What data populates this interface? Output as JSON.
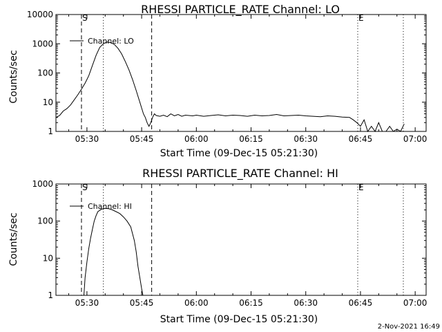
{
  "footer": {
    "date_stamp": "2-Nov-2021 16:49"
  },
  "chart_data": [
    {
      "type": "line",
      "title": "RHESSI PARTICLE_RATE Channel: LO",
      "xlabel": "Start Time (09-Dec-15 05:21:30)",
      "ylabel": "Counts/sec",
      "yscale": "log",
      "ylim": [
        1,
        10000
      ],
      "xlim": [
        "05:21:30",
        "07:03:00"
      ],
      "x_ticks": [
        "05:30",
        "05:45",
        "06:00",
        "06:15",
        "06:30",
        "06:45",
        "07:00"
      ],
      "y_ticks": [
        "1",
        "10",
        "100",
        "1000",
        "10000"
      ],
      "legend": {
        "position": "top-left",
        "label": "Channel: LO"
      },
      "markers": [
        {
          "label": "S",
          "time": "05:28:30",
          "style": "dashed"
        },
        {
          "label": "",
          "time": "05:34:30",
          "style": "dotted"
        },
        {
          "label": "",
          "time": "05:47:45",
          "style": "dashed"
        },
        {
          "label": "E",
          "time": "06:44:15",
          "style": "dotted"
        },
        {
          "label": "",
          "time": "06:56:45",
          "style": "dotted"
        },
        {
          "label": "",
          "time": "05:21:30",
          "style": "dotted"
        }
      ],
      "series": [
        {
          "name": "Channel: LO",
          "x": [
            "05:21:30",
            "05:22:30",
            "05:23:30",
            "05:24:30",
            "05:25:30",
            "05:26:30",
            "05:27:30",
            "05:28:30",
            "05:29:30",
            "05:30:30",
            "05:31:30",
            "05:32:30",
            "05:33:30",
            "05:34:30",
            "05:35:30",
            "05:36:30",
            "05:37:30",
            "05:38:30",
            "05:39:30",
            "05:40:30",
            "05:41:30",
            "05:42:30",
            "05:43:30",
            "05:44:30",
            "05:45:30",
            "05:46:00",
            "05:46:30",
            "05:47:00",
            "05:47:30",
            "05:48:00",
            "05:48:30",
            "05:49:00",
            "05:50:00",
            "05:51:00",
            "05:52:00",
            "05:53:00",
            "05:54:00",
            "05:55:00",
            "05:56:00",
            "05:57:00",
            "05:58:00",
            "05:59:00",
            "06:00:00",
            "06:02:00",
            "06:04:00",
            "06:06:00",
            "06:08:00",
            "06:10:00",
            "06:12:00",
            "06:14:00",
            "06:16:00",
            "06:18:00",
            "06:20:00",
            "06:22:00",
            "06:24:00",
            "06:26:00",
            "06:28:00",
            "06:30:00",
            "06:32:00",
            "06:34:00",
            "06:36:00",
            "06:38:00",
            "06:40:00",
            "06:42:00",
            "06:43:00",
            "06:44:00",
            "06:45:00",
            "06:46:00",
            "06:47:00",
            "06:48:00",
            "06:49:00",
            "06:50:00",
            "06:51:00",
            "06:52:00",
            "06:53:00",
            "06:54:00",
            "06:55:00",
            "06:56:00",
            "06:57:00"
          ],
          "y": [
            3,
            3.5,
            5,
            6,
            8,
            12,
            18,
            28,
            45,
            80,
            180,
            400,
            750,
            1000,
            1150,
            1100,
            950,
            700,
            450,
            250,
            130,
            60,
            25,
            10,
            4,
            3,
            2,
            1.5,
            2,
            3,
            4,
            3.5,
            3.3,
            3.6,
            3.2,
            4,
            3.4,
            3.8,
            3.3,
            3.6,
            3.5,
            3.4,
            3.6,
            3.3,
            3.5,
            3.7,
            3.4,
            3.6,
            3.5,
            3.3,
            3.6,
            3.4,
            3.5,
            3.8,
            3.4,
            3.5,
            3.6,
            3.4,
            3.3,
            3.2,
            3.4,
            3.3,
            3.1,
            3,
            2.5,
            2,
            1.5,
            2.5,
            1,
            1.5,
            1,
            2,
            1,
            1,
            1.5,
            1,
            1.2,
            1,
            1.8
          ]
        }
      ]
    },
    {
      "type": "line",
      "title": "RHESSI PARTICLE_RATE Channel: HI",
      "xlabel": "Start Time (09-Dec-15 05:21:30)",
      "ylabel": "Counts/sec",
      "yscale": "log",
      "ylim": [
        1,
        1000
      ],
      "xlim": [
        "05:21:30",
        "07:03:00"
      ],
      "x_ticks": [
        "05:30",
        "05:45",
        "06:00",
        "06:15",
        "06:30",
        "06:45",
        "07:00"
      ],
      "y_ticks": [
        "1",
        "10",
        "100",
        "1000"
      ],
      "legend": {
        "position": "top-left",
        "label": "Channel: HI"
      },
      "markers": [
        {
          "label": "S",
          "time": "05:28:30",
          "style": "dashed"
        },
        {
          "label": "",
          "time": "05:34:30",
          "style": "dotted"
        },
        {
          "label": "",
          "time": "05:47:45",
          "style": "dashed"
        },
        {
          "label": "E",
          "time": "06:44:15",
          "style": "dotted"
        },
        {
          "label": "",
          "time": "06:56:45",
          "style": "dotted"
        },
        {
          "label": "",
          "time": "05:21:30",
          "style": "dotted"
        }
      ],
      "series": [
        {
          "name": "Channel: HI",
          "x": [
            "05:29:10",
            "05:29:30",
            "05:30:00",
            "05:30:30",
            "05:31:00",
            "05:31:30",
            "05:32:00",
            "05:32:30",
            "05:33:00",
            "05:34:00",
            "05:35:00",
            "05:36:00",
            "05:37:00",
            "05:38:00",
            "05:39:00",
            "05:40:00",
            "05:41:00",
            "05:42:00",
            "05:43:00",
            "05:43:30",
            "05:44:00",
            "05:44:30",
            "05:45:00",
            "05:45:20"
          ],
          "y": [
            1,
            3,
            8,
            18,
            35,
            60,
            100,
            140,
            180,
            210,
            220,
            215,
            200,
            180,
            160,
            130,
            100,
            70,
            30,
            15,
            6,
            3,
            1.5,
            1
          ]
        }
      ]
    }
  ]
}
